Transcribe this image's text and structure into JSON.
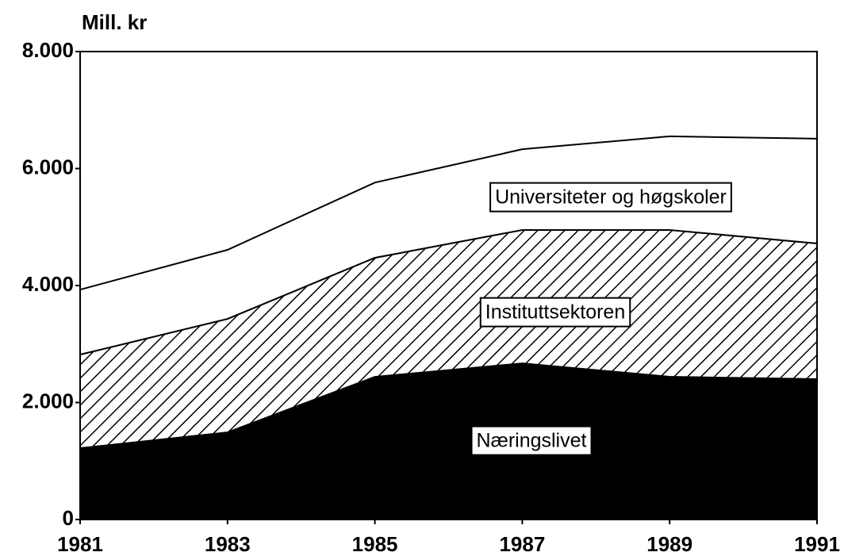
{
  "chart_data": {
    "type": "stacked_area",
    "y_label": "Mill. kr",
    "x": [
      1981,
      1983,
      1985,
      1987,
      1989,
      1991
    ],
    "xlim": [
      1981,
      1991
    ],
    "xticks": [
      1981,
      1983,
      1985,
      1987,
      1989,
      1991
    ],
    "ylim": [
      0,
      8000
    ],
    "yticks": [
      0,
      {
        "value": 2000,
        "label": "2.000"
      },
      {
        "value": 4000,
        "label": "4.000"
      },
      {
        "value": 6000,
        "label": "6.000"
      },
      {
        "value": 8000,
        "label": "8.000"
      }
    ],
    "series": [
      {
        "name": "Næringslivet",
        "color": "#000000",
        "values": [
          1220,
          1490,
          2440,
          2670,
          2440,
          2400
        ]
      },
      {
        "name": "Instituttsektoren",
        "color": "#000000",
        "pattern": "hatch",
        "values": [
          1600,
          1940,
          2035,
          2280,
          2510,
          2320
        ]
      },
      {
        "name": "Universiteter og høgskoler",
        "color": "#ffffff",
        "values": [
          1110,
          1180,
          1285,
          1380,
          1600,
          1790
        ]
      }
    ]
  }
}
